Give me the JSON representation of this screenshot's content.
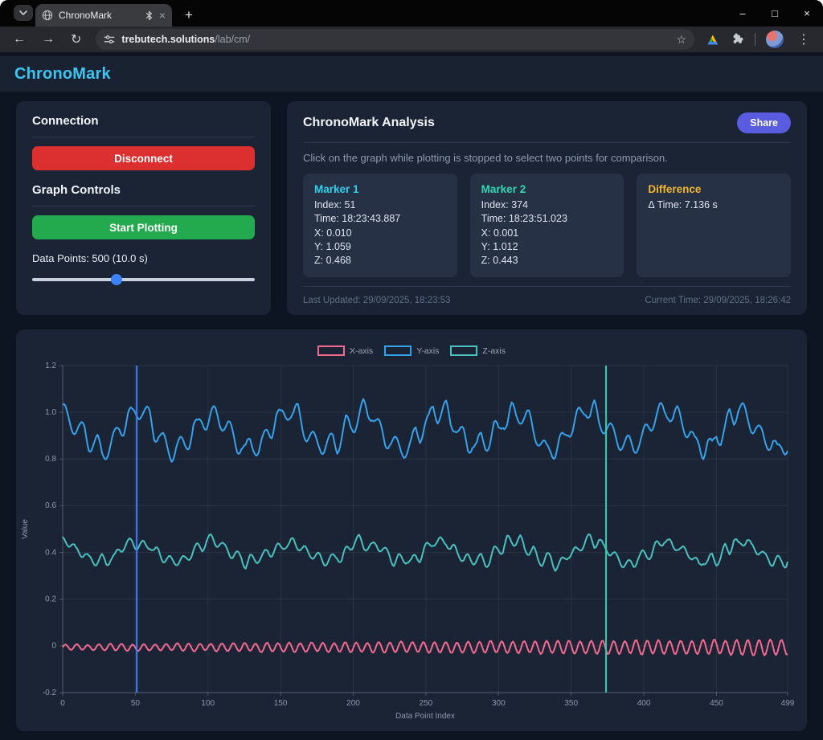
{
  "browser": {
    "tab": {
      "title": "ChronoMark",
      "close_glyph": "×"
    },
    "new_tab_glyph": "+",
    "window_controls": {
      "minimize": "–",
      "maximize": "□",
      "close": "×"
    },
    "url": {
      "domain": "trebutech.solutions",
      "path": "/lab/cm/"
    },
    "star_glyph": "☆",
    "kebab_glyph": "⋮",
    "back_glyph": "←",
    "forward_glyph": "→",
    "reload_glyph": "↻"
  },
  "header": {
    "title": "ChronoMark",
    "accent": "#3cc5f0"
  },
  "connection_panel": {
    "title": "Connection",
    "disconnect_label": "Disconnect",
    "disconnect_color": "#dc2f2f",
    "controls_title": "Graph Controls",
    "start_label": "Start Plotting",
    "start_color": "#23a94e",
    "datapoints_label": "Data Points: 500 (10.0 s)",
    "slider": {
      "thumb_left": "38%",
      "thumb_color": "#3b82f6"
    }
  },
  "analysis": {
    "title": "ChronoMark Analysis",
    "share_label": "Share",
    "share_color": "#5a5cdf",
    "instruction": "Click on the graph while plotting is stopped to select two points for comparison.",
    "marker1": {
      "title": "Marker 1",
      "color": "#2fd0ee",
      "lines": [
        "Index: 51",
        "Time: 18:23:43.887",
        "X: 0.010",
        "Y: 1.059",
        "Z: 0.468"
      ]
    },
    "marker2": {
      "title": "Marker 2",
      "color": "#33d6b5",
      "lines": [
        "Index: 374",
        "Time: 18:23:51.023",
        "X: 0.001",
        "Y: 1.012",
        "Z: 0.443"
      ]
    },
    "difference": {
      "title": "Difference",
      "color": "#f2b632",
      "lines": [
        "Δ Time: 7.136 s"
      ]
    },
    "last_updated": "Last Updated: 29/09/2025, 18:23:53",
    "current_time": "Current Time: 29/09/2025, 18:26:42"
  },
  "chart_data": {
    "type": "line",
    "xlabel": "Data Point Index",
    "ylabel": "Value",
    "xlim": [
      0,
      499
    ],
    "ylim": [
      -0.2,
      1.2
    ],
    "n_points": 500,
    "grid": true,
    "legend_position": "top",
    "x_ticks": [
      0,
      50,
      100,
      150,
      200,
      250,
      300,
      350,
      400,
      450,
      499
    ],
    "y_ticks": [
      {
        "v": -0.2,
        "label": "-0.2"
      },
      {
        "v": 0,
        "label": "0"
      },
      {
        "v": 0.2,
        "label": "0.2"
      },
      {
        "v": 0.4,
        "label": "0.4"
      },
      {
        "v": 0.6,
        "label": "0.6"
      },
      {
        "v": 0.8,
        "label": "0.8"
      },
      {
        "v": 1.0,
        "label": "1.0"
      },
      {
        "v": 1.2,
        "label": "1.2"
      }
    ],
    "series": [
      {
        "name": "X-axis",
        "color": "#f56991",
        "seed": 11,
        "base": -0.006,
        "noise": 0.004,
        "components": [
          {
            "amp": 0.012,
            "grow": 0.022,
            "period": 7.7,
            "phase": 0
          }
        ]
      },
      {
        "name": "Y-axis",
        "color": "#36a2eb",
        "seed": 22,
        "base": 0.925,
        "noise": 0.03,
        "components": [
          {
            "amp": 0.075,
            "grow": 0,
            "period": 52,
            "phase": 1.69
          },
          {
            "amp": 0.04,
            "grow": 0,
            "period": 11.4,
            "phase": 0.7
          }
        ]
      },
      {
        "name": "Z-axis",
        "color": "#4bc0c0",
        "seed": 33,
        "base": 0.4,
        "noise": 0.018,
        "components": [
          {
            "amp": 0.045,
            "grow": 0,
            "period": 52,
            "phase": 1.6
          },
          {
            "amp": 0.022,
            "grow": 0,
            "period": 9.3,
            "phase": 2.0
          }
        ]
      }
    ],
    "markers": [
      {
        "index": 51,
        "color": "#3f7ff7"
      },
      {
        "index": 374,
        "color": "#23d3ad"
      }
    ]
  }
}
